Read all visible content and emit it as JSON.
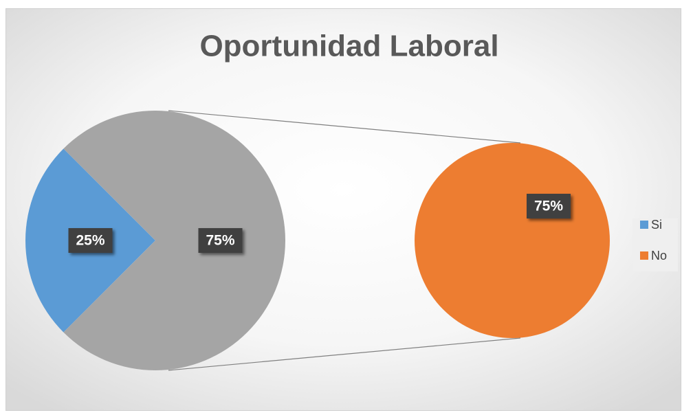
{
  "chart_data": {
    "type": "pie-of-pie",
    "title": "Oportunidad Laboral",
    "categories": [
      "Si",
      "No"
    ],
    "values": [
      25,
      75
    ],
    "value_labels": [
      "25%",
      "75%"
    ],
    "colors": [
      "#5b9bd5",
      "#ed7d31"
    ],
    "other_color": "#a5a5a5",
    "legend": "right"
  }
}
